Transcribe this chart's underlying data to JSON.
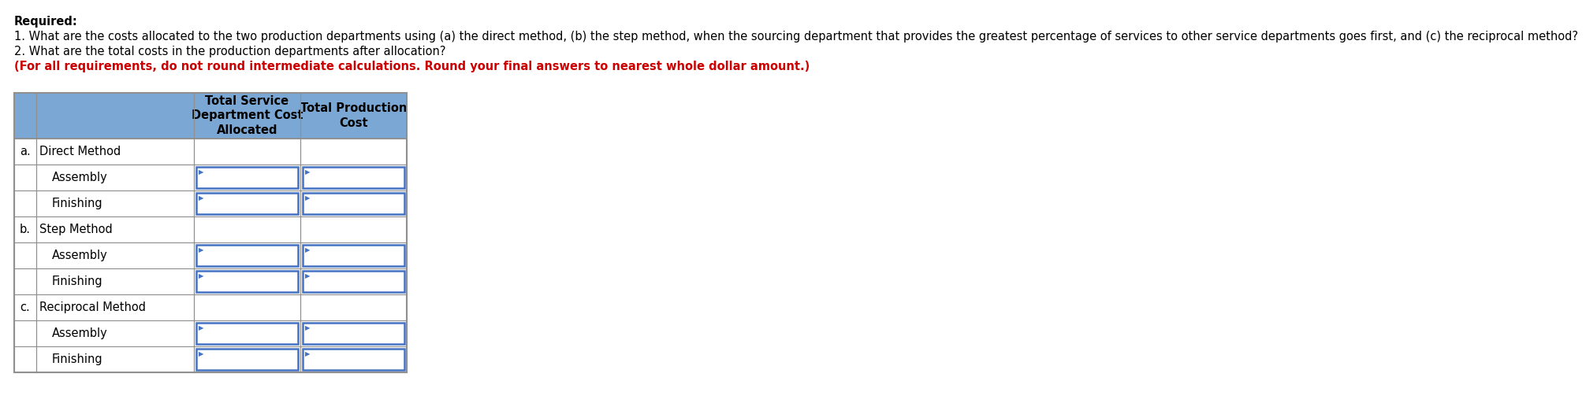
{
  "title_lines": [
    {
      "text": "Required:",
      "bold": true,
      "color": "#000000"
    },
    {
      "text": "1. What are the costs allocated to the two production departments using (a) the direct method, (b) the step method, when the sourcing department that provides the greatest percentage of services to other service departments goes first, and (c) the reciprocal method?",
      "bold": false,
      "color": "#000000"
    },
    {
      "text": "2. What are the total costs in the production departments after allocation?",
      "bold": false,
      "color": "#000000"
    },
    {
      "text": "(For all requirements, do not round intermediate calculations. Round your final answers to nearest whole dollar amount.)",
      "bold": true,
      "color": "#CC0000"
    }
  ],
  "header_bg": "#7BA7D4",
  "header_text_color": "#000000",
  "col2_header": "Total Service\nDepartment Cost\nAllocated",
  "col3_header": "Total Production\nCost",
  "rows": [
    {
      "label_a": "a.",
      "label_b": "Direct Method",
      "indent": false,
      "has_input_col2": false,
      "has_input_col3": false
    },
    {
      "label_a": "",
      "label_b": "Assembly",
      "indent": true,
      "has_input_col2": true,
      "has_input_col3": true
    },
    {
      "label_a": "",
      "label_b": "Finishing",
      "indent": true,
      "has_input_col2": true,
      "has_input_col3": true
    },
    {
      "label_a": "b.",
      "label_b": "Step Method",
      "indent": false,
      "has_input_col2": false,
      "has_input_col3": false
    },
    {
      "label_a": "",
      "label_b": "Assembly",
      "indent": true,
      "has_input_col2": true,
      "has_input_col3": true
    },
    {
      "label_a": "",
      "label_b": "Finishing",
      "indent": true,
      "has_input_col2": true,
      "has_input_col3": true
    },
    {
      "label_a": "c.",
      "label_b": "Reciprocal Method",
      "indent": false,
      "has_input_col2": false,
      "has_input_col3": false
    },
    {
      "label_a": "",
      "label_b": "Assembly",
      "indent": true,
      "has_input_col2": true,
      "has_input_col3": true
    },
    {
      "label_a": "",
      "label_b": "Finishing",
      "indent": true,
      "has_input_col2": true,
      "has_input_col3": true
    }
  ],
  "input_border_color": "#4472C4",
  "table_border_color": "#909090",
  "bg_color": "#FFFFFF",
  "font_size_body": 10.5,
  "font_size_header": 10.5
}
